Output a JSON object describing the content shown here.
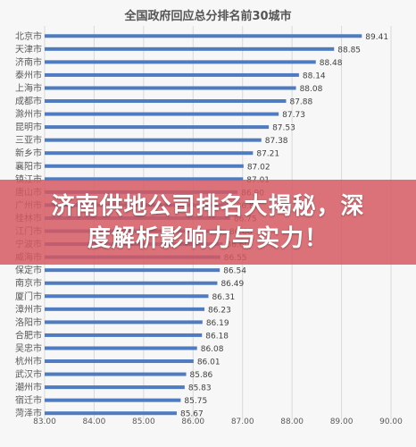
{
  "overlay": {
    "line1": "济南供地公司排名大揭秘，深",
    "line2": "度解析影响力与实力！"
  },
  "chart_data": {
    "type": "bar",
    "orientation": "horizontal",
    "title": "全国政府回应总分排名前30城市",
    "xlim": [
      83.0,
      90.0
    ],
    "xticks": [
      "83.00",
      "84.00",
      "85.00",
      "86.00",
      "87.00",
      "88.00",
      "89.00",
      "90.00"
    ],
    "grid": "vertical",
    "bar_color": "#4f7cc0",
    "categories": [
      "北京市",
      "天津市",
      "济南市",
      "泰州市",
      "上海市",
      "成都市",
      "滁州市",
      "昆明市",
      "三亚市",
      "新乡市",
      "襄阳市",
      "镇江市",
      "唐山市",
      "广州市",
      "桂林市",
      "江门市",
      "宁波市",
      "威海市",
      "保定市",
      "南京市",
      "厦门市",
      "漳州市",
      "洛阳市",
      "合肥市",
      "吴忠市",
      "杭州市",
      "武汉市",
      "潮州市",
      "宿迁市",
      "菏泽市"
    ],
    "values": [
      89.41,
      88.85,
      88.48,
      88.14,
      88.08,
      87.88,
      87.73,
      87.53,
      87.38,
      87.21,
      87.02,
      87.01,
      86.9,
      86.8,
      86.75,
      86.66,
      86.6,
      86.55,
      86.54,
      86.49,
      86.31,
      86.23,
      86.19,
      86.18,
      86.08,
      86.01,
      85.86,
      85.83,
      85.75,
      85.67
    ],
    "value_labels": [
      "89.41",
      "88.85",
      "88.48",
      "88.14",
      "88.08",
      "87.88",
      "87.73",
      "87.53",
      "87.38",
      "87.21",
      "87.02",
      "87.01",
      "86.90",
      "86.80",
      "86.75",
      "86.66",
      "86.60",
      "86.55",
      "86.54",
      "86.49",
      "86.31",
      "86.23",
      "86.19",
      "86.18",
      "86.08",
      "86.01",
      "85.86",
      "85.83",
      "85.75",
      "85.67"
    ]
  }
}
